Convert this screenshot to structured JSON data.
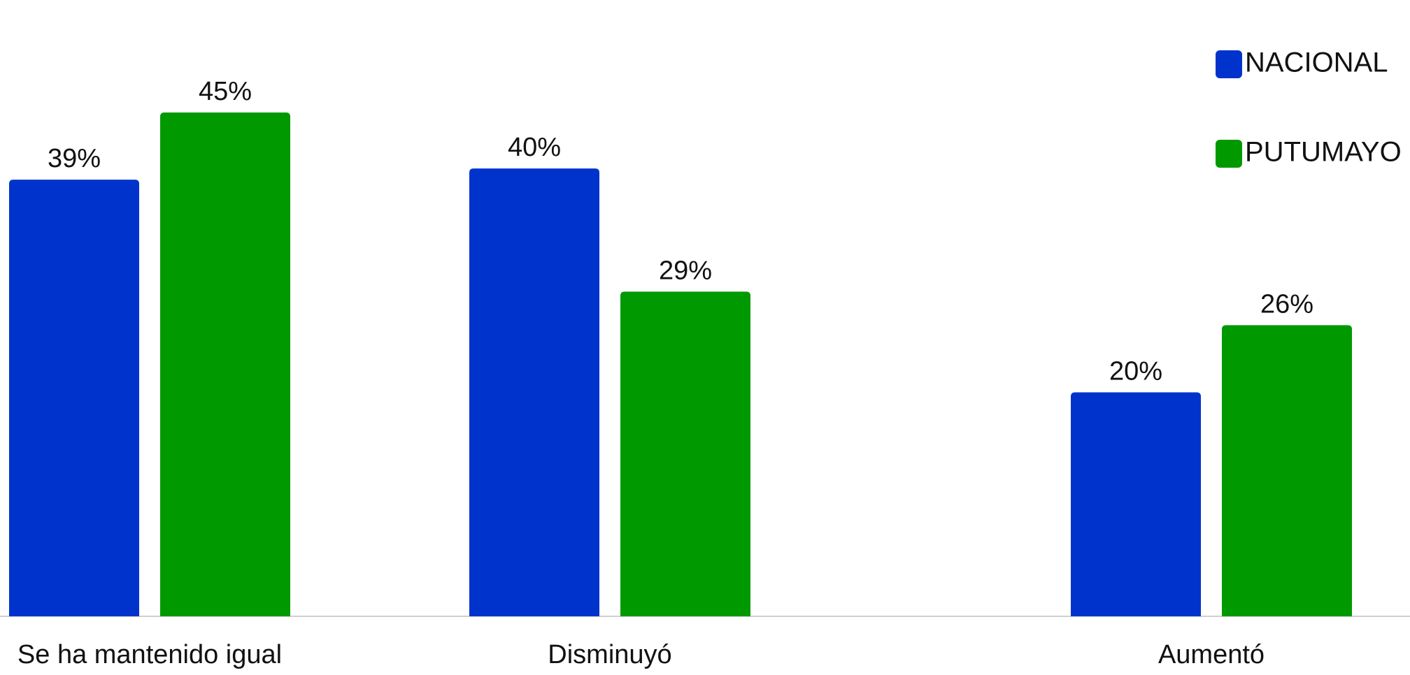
{
  "chart_data": {
    "type": "bar",
    "categories": [
      "Se ha mantenido igual",
      "Disminuyó",
      "Aumentó"
    ],
    "series": [
      {
        "name": "NACIONAL",
        "color": "#0033cc",
        "values": [
          39,
          40,
          20
        ],
        "value_labels": [
          "39%",
          "40%",
          "20%"
        ]
      },
      {
        "name": "PUTUMAYO",
        "color": "#009900",
        "values": [
          45,
          29,
          26
        ],
        "value_labels": [
          "45%",
          "29%",
          "26%"
        ]
      }
    ],
    "ylim": [
      0,
      45
    ],
    "legend": "top-right"
  }
}
